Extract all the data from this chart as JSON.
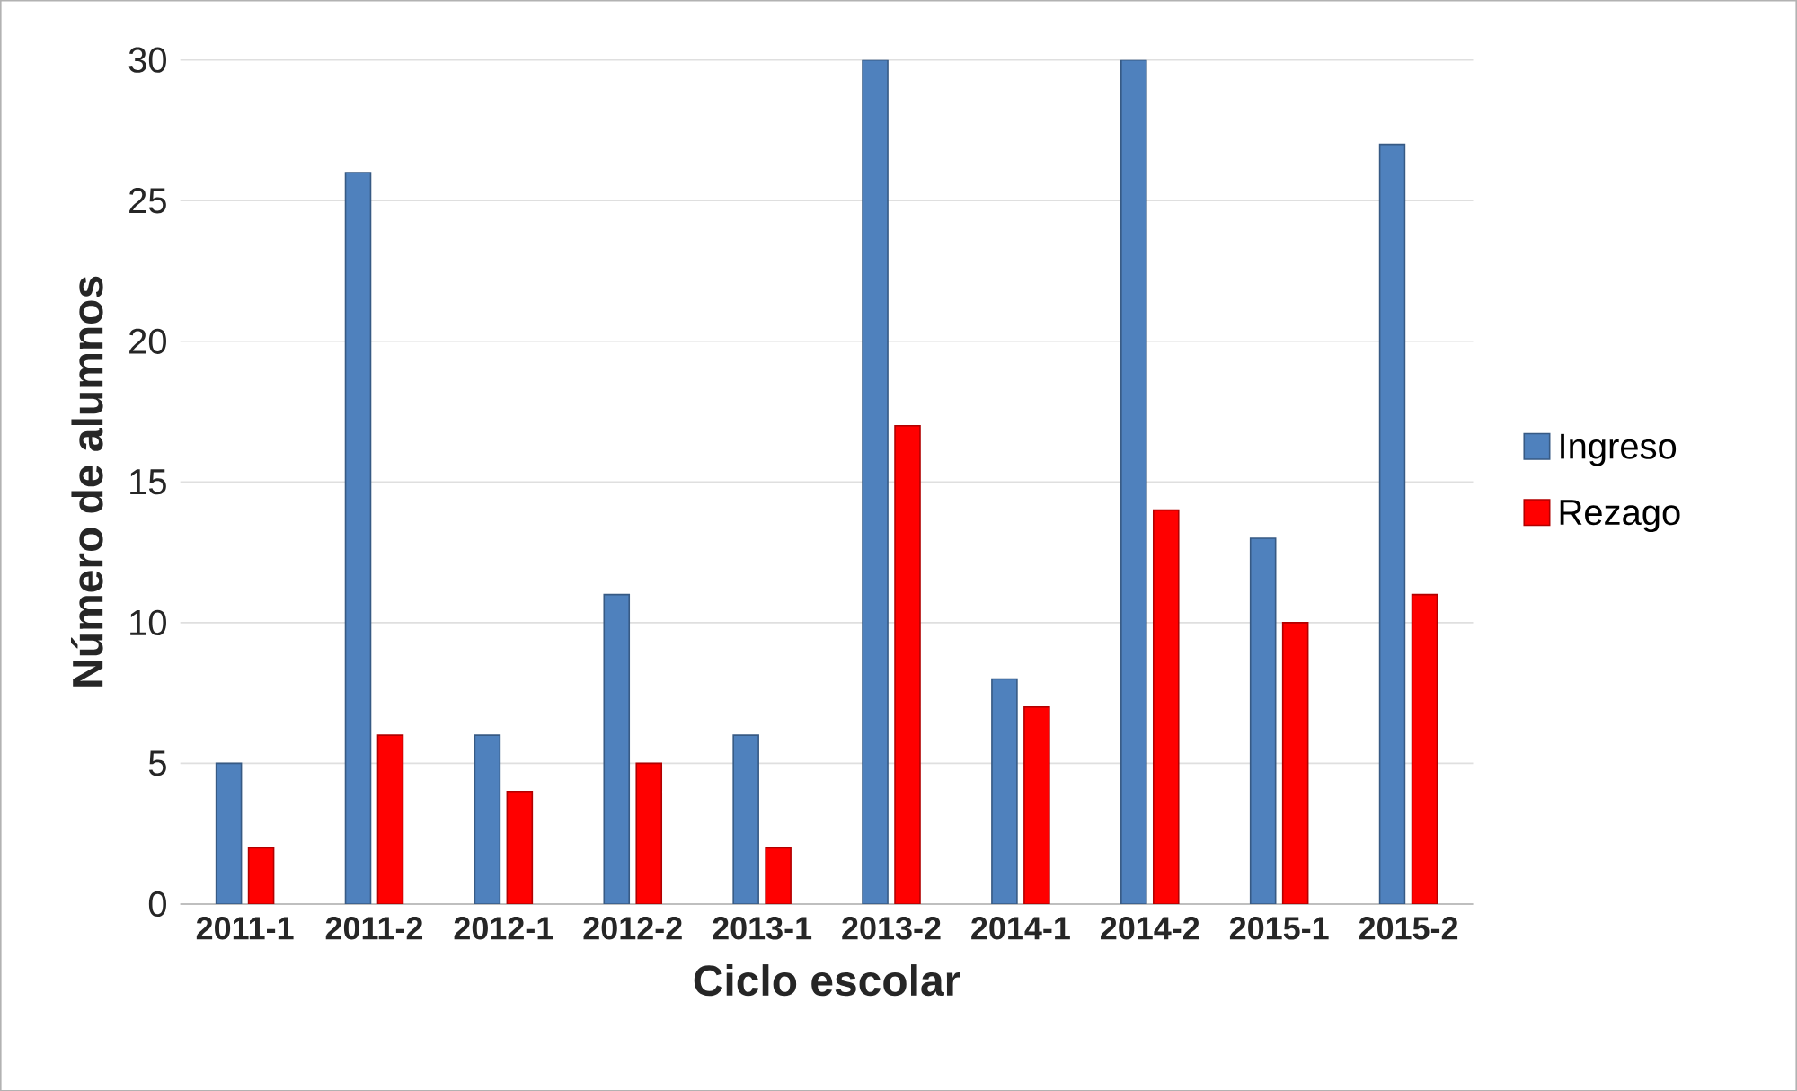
{
  "chart_data": {
    "type": "bar",
    "xlabel": "Ciclo escolar",
    "ylabel": "Número de alumnos",
    "categories": [
      "2011-1",
      "2011-2",
      "2012-1",
      "2012-2",
      "2013-1",
      "2013-2",
      "2014-1",
      "2014-2",
      "2015-1",
      "2015-2"
    ],
    "series": [
      {
        "name": "Ingreso",
        "color": "#4f81bd",
        "values": [
          5,
          26,
          6,
          11,
          6,
          30,
          8,
          30,
          13,
          27
        ]
      },
      {
        "name": "Rezago",
        "color": "#ff0000",
        "values": [
          2,
          6,
          4,
          5,
          2,
          17,
          7,
          14,
          10,
          11
        ]
      }
    ],
    "ylim": [
      0,
      30
    ],
    "yticks": [
      0,
      5,
      10,
      15,
      20,
      25,
      30
    ],
    "grid": "y",
    "legend": "right"
  }
}
